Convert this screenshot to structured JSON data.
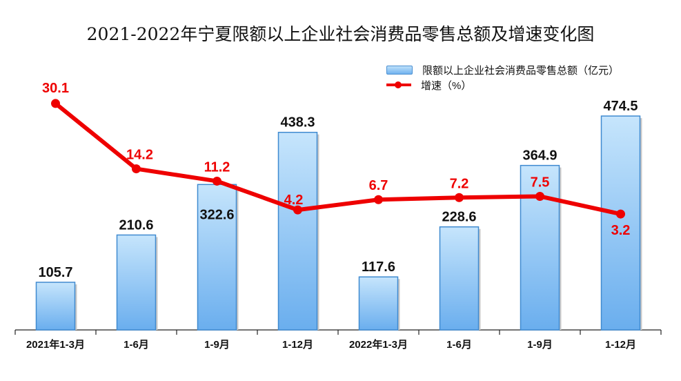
{
  "chart_data": {
    "type": "bar+line",
    "title": "2021-2022年宁夏限额以上企业社会消费品零售总额及增速变化图",
    "categories": [
      "2021年1-3月",
      "1-6月",
      "1-9月",
      "1-12月",
      "2022年1-3月",
      "1-6月",
      "1-9月",
      "1-12月"
    ],
    "series": [
      {
        "name": "限额以上企业社会消费品零售总额（亿元）",
        "type": "bar",
        "axis": "left",
        "values": [
          105.7,
          210.6,
          322.6,
          438.3,
          117.6,
          228.6,
          364.9,
          474.5
        ],
        "color": "#72b3ef"
      },
      {
        "name": "增速（%）",
        "type": "line",
        "axis": "right",
        "values": [
          30.1,
          14.2,
          11.2,
          4.2,
          6.7,
          7.2,
          7.5,
          3.2
        ],
        "color": "#ee0000"
      }
    ],
    "ylim": [
      0,
      640
    ],
    "y2lim": [
      -25,
      45.2
    ],
    "axes_visible": false,
    "grid": false,
    "legend": "top-right"
  }
}
